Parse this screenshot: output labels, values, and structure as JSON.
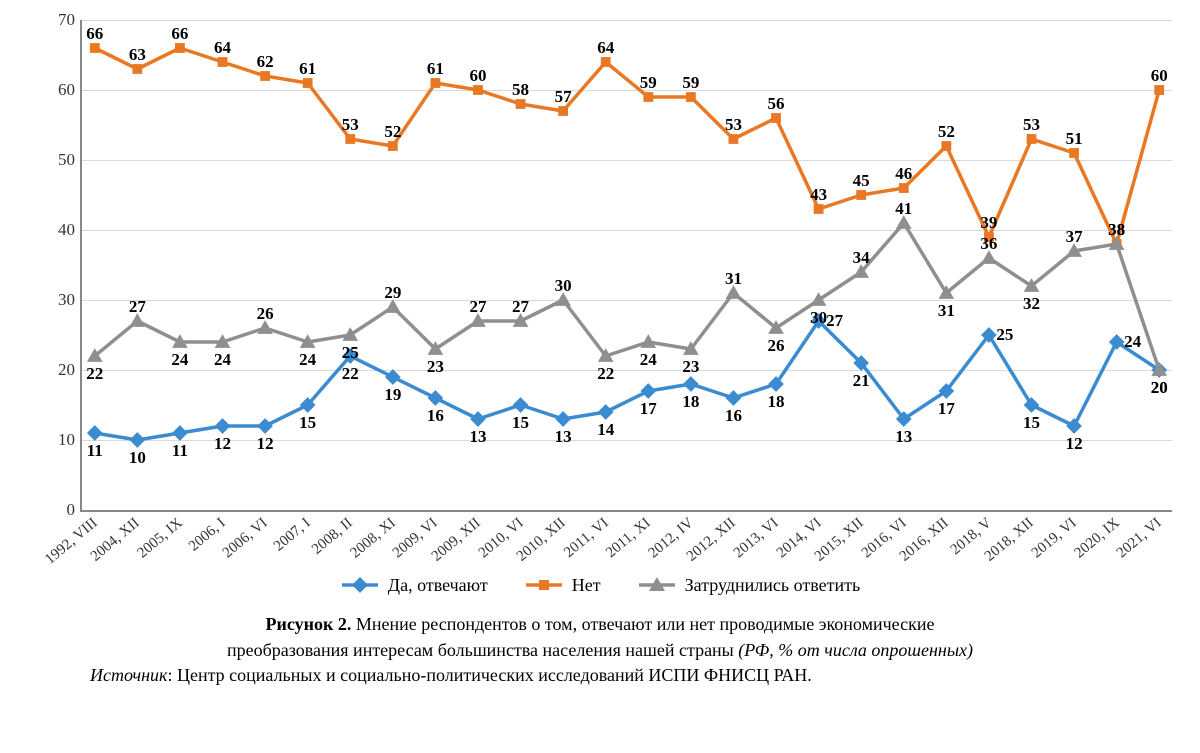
{
  "chart": {
    "type": "line",
    "y": {
      "min": 0,
      "max": 70,
      "ticks": [
        0,
        10,
        20,
        30,
        40,
        50,
        60,
        70
      ]
    },
    "grid_color": "#d9d9d9",
    "axis_color": "#888888",
    "background": "#ffffff",
    "line_width": 3.5,
    "marker_size": 7,
    "label_font_size": 17,
    "xlabels": [
      "1992, VIII",
      "2004, XII",
      "2005, IX",
      "2006, I",
      "2006, VI",
      "2007, I",
      "2008, II",
      "2008, XI",
      "2009, VI",
      "2009, XII",
      "2010, VI",
      "2010, XII",
      "2011, VI",
      "2011, XI",
      "2012, IV",
      "2012, XII",
      "2013, VI",
      "2014, VI",
      "2015, XII",
      "2016, VI",
      "2016, XII",
      "2018, V",
      "2018, XII",
      "2019, VI",
      "2020, IX",
      "2021, VI"
    ],
    "series": [
      {
        "name": "Да, отвечают",
        "color": "#3b8bd1",
        "marker": "diamond",
        "values": [
          11,
          10,
          11,
          12,
          12,
          15,
          22,
          19,
          16,
          13,
          15,
          13,
          14,
          17,
          18,
          16,
          18,
          27,
          21,
          13,
          17,
          25,
          15,
          12,
          24,
          20
        ],
        "label_pos": [
          "below",
          "below",
          "below",
          "below",
          "below",
          "below",
          "below",
          "below",
          "below",
          "below",
          "below",
          "below",
          "below",
          "below",
          "below",
          "below",
          "below",
          "right",
          "below",
          "below",
          "below",
          "right",
          "below",
          "below",
          "right",
          "below"
        ]
      },
      {
        "name": "Нет",
        "color": "#e97824",
        "marker": "square",
        "values": [
          66,
          63,
          66,
          64,
          62,
          61,
          53,
          52,
          61,
          60,
          58,
          57,
          64,
          59,
          59,
          53,
          56,
          43,
          45,
          46,
          52,
          39,
          53,
          51,
          38,
          60
        ],
        "label_pos": [
          "above",
          "above",
          "above",
          "above",
          "above",
          "above",
          "above",
          "above",
          "above",
          "above",
          "above",
          "above",
          "above",
          "above",
          "above",
          "above",
          "above",
          "above",
          "above",
          "above",
          "above",
          "above",
          "above",
          "above",
          "above",
          "above"
        ]
      },
      {
        "name": "Затруднились ответить",
        "color": "#8f8f8f",
        "marker": "triangle",
        "values": [
          22,
          27,
          24,
          24,
          26,
          24,
          25,
          29,
          23,
          27,
          27,
          30,
          22,
          24,
          23,
          31,
          26,
          30,
          34,
          41,
          31,
          36,
          32,
          37,
          38,
          20
        ],
        "label_pos": [
          "below",
          "above",
          "below",
          "below",
          "above",
          "below",
          "below",
          "above",
          "below",
          "above",
          "above",
          "above",
          "below",
          "below",
          "below",
          "above",
          "below",
          "below",
          "above",
          "above",
          "below",
          "above",
          "below",
          "above",
          "above",
          "below"
        ]
      }
    ]
  },
  "legend": {
    "items": [
      {
        "label": "Да, отвечают",
        "color": "#3b8bd1",
        "marker": "diamond"
      },
      {
        "label": "Нет",
        "color": "#e97824",
        "marker": "square"
      },
      {
        "label": "Затруднились ответить",
        "color": "#8f8f8f",
        "marker": "triangle"
      }
    ]
  },
  "caption": {
    "figure_label": "Рисунок 2.",
    "line1": " Мнение респондентов о том, отвечают или нет проводимые экономические",
    "line2": "преобразования интересам большинства населения нашей страны ",
    "line2_ital": "(РФ, % от числа опрошенных)"
  },
  "source": {
    "label": "Источник",
    "text": ": Центр социальных и социально-политических исследований ИСПИ ФНИСЦ РАН."
  }
}
